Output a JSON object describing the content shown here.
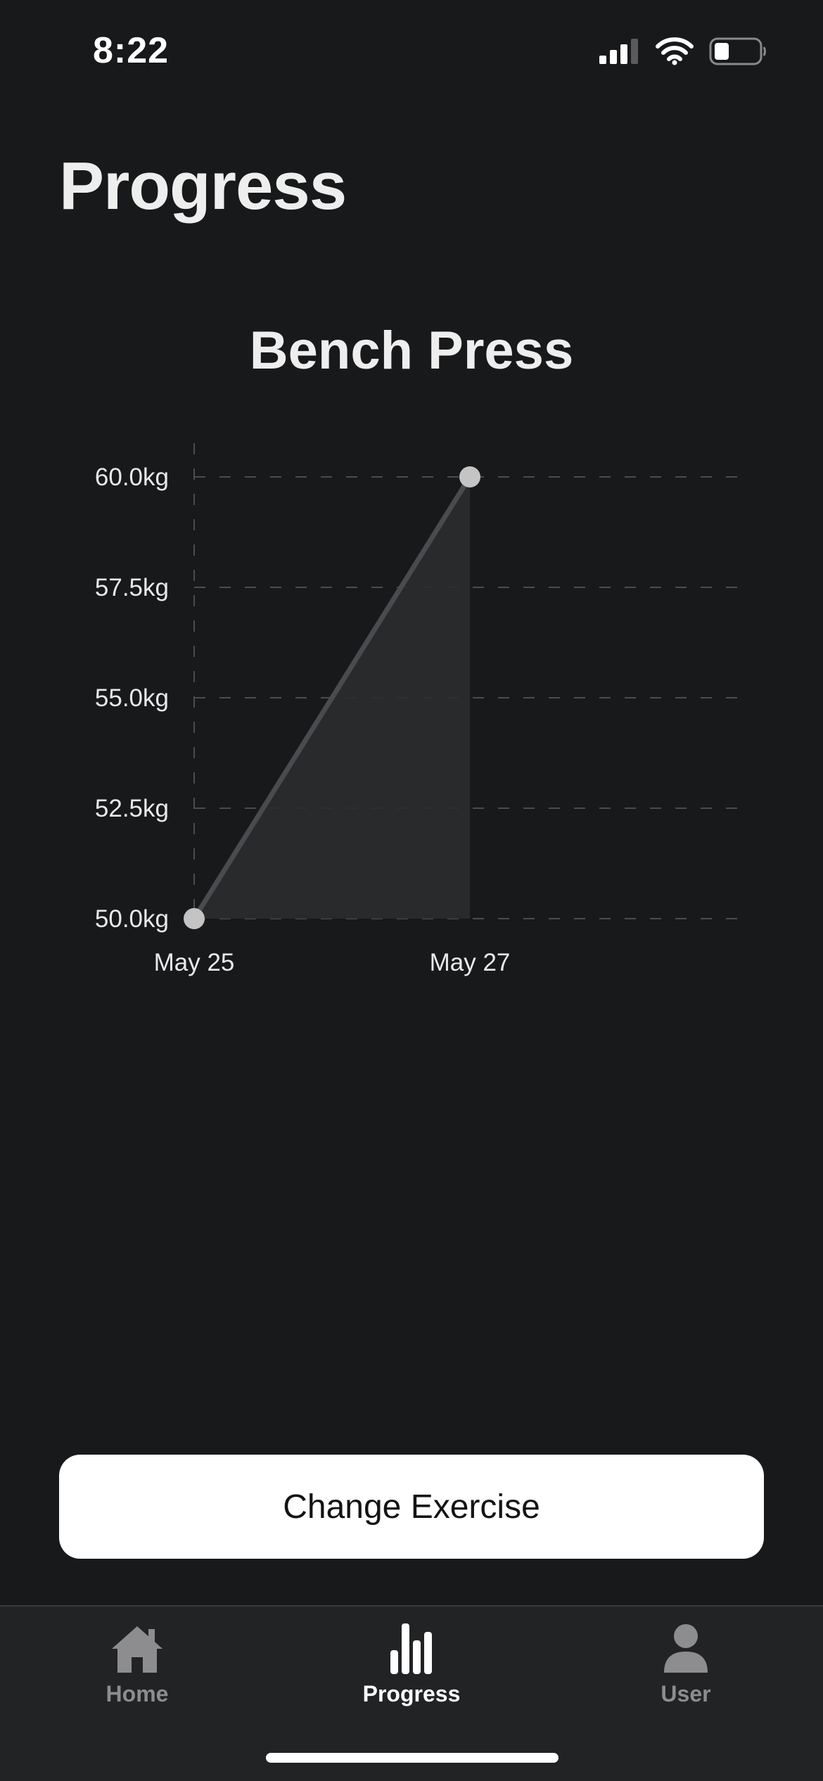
{
  "status_bar": {
    "time": "8:22",
    "icons": [
      "cellular-signal-icon",
      "wifi-icon",
      "battery-icon"
    ]
  },
  "header": {
    "title": "Progress"
  },
  "chart_data": {
    "type": "area",
    "title": "Bench Press",
    "x": [
      "May 25",
      "May 27"
    ],
    "series": [
      {
        "values": [
          50.0,
          60.0
        ]
      }
    ],
    "yticks": [
      "50.0kg",
      "52.5kg",
      "55.0kg",
      "57.5kg",
      "60.0kg"
    ],
    "ylim": [
      50.0,
      60.0
    ],
    "grid": true,
    "colors": {
      "line": "#4a4b4e",
      "fill": "#2b2c2e",
      "point": "#c4c4c4",
      "grid": "#4b4c4f"
    }
  },
  "actions": {
    "change_exercise_label": "Change Exercise"
  },
  "tab_bar": {
    "items": [
      {
        "label": "Home",
        "icon": "house-icon",
        "active": false
      },
      {
        "label": "Progress",
        "icon": "bar-chart-icon",
        "active": true
      },
      {
        "label": "User",
        "icon": "person-icon",
        "active": false
      }
    ]
  }
}
